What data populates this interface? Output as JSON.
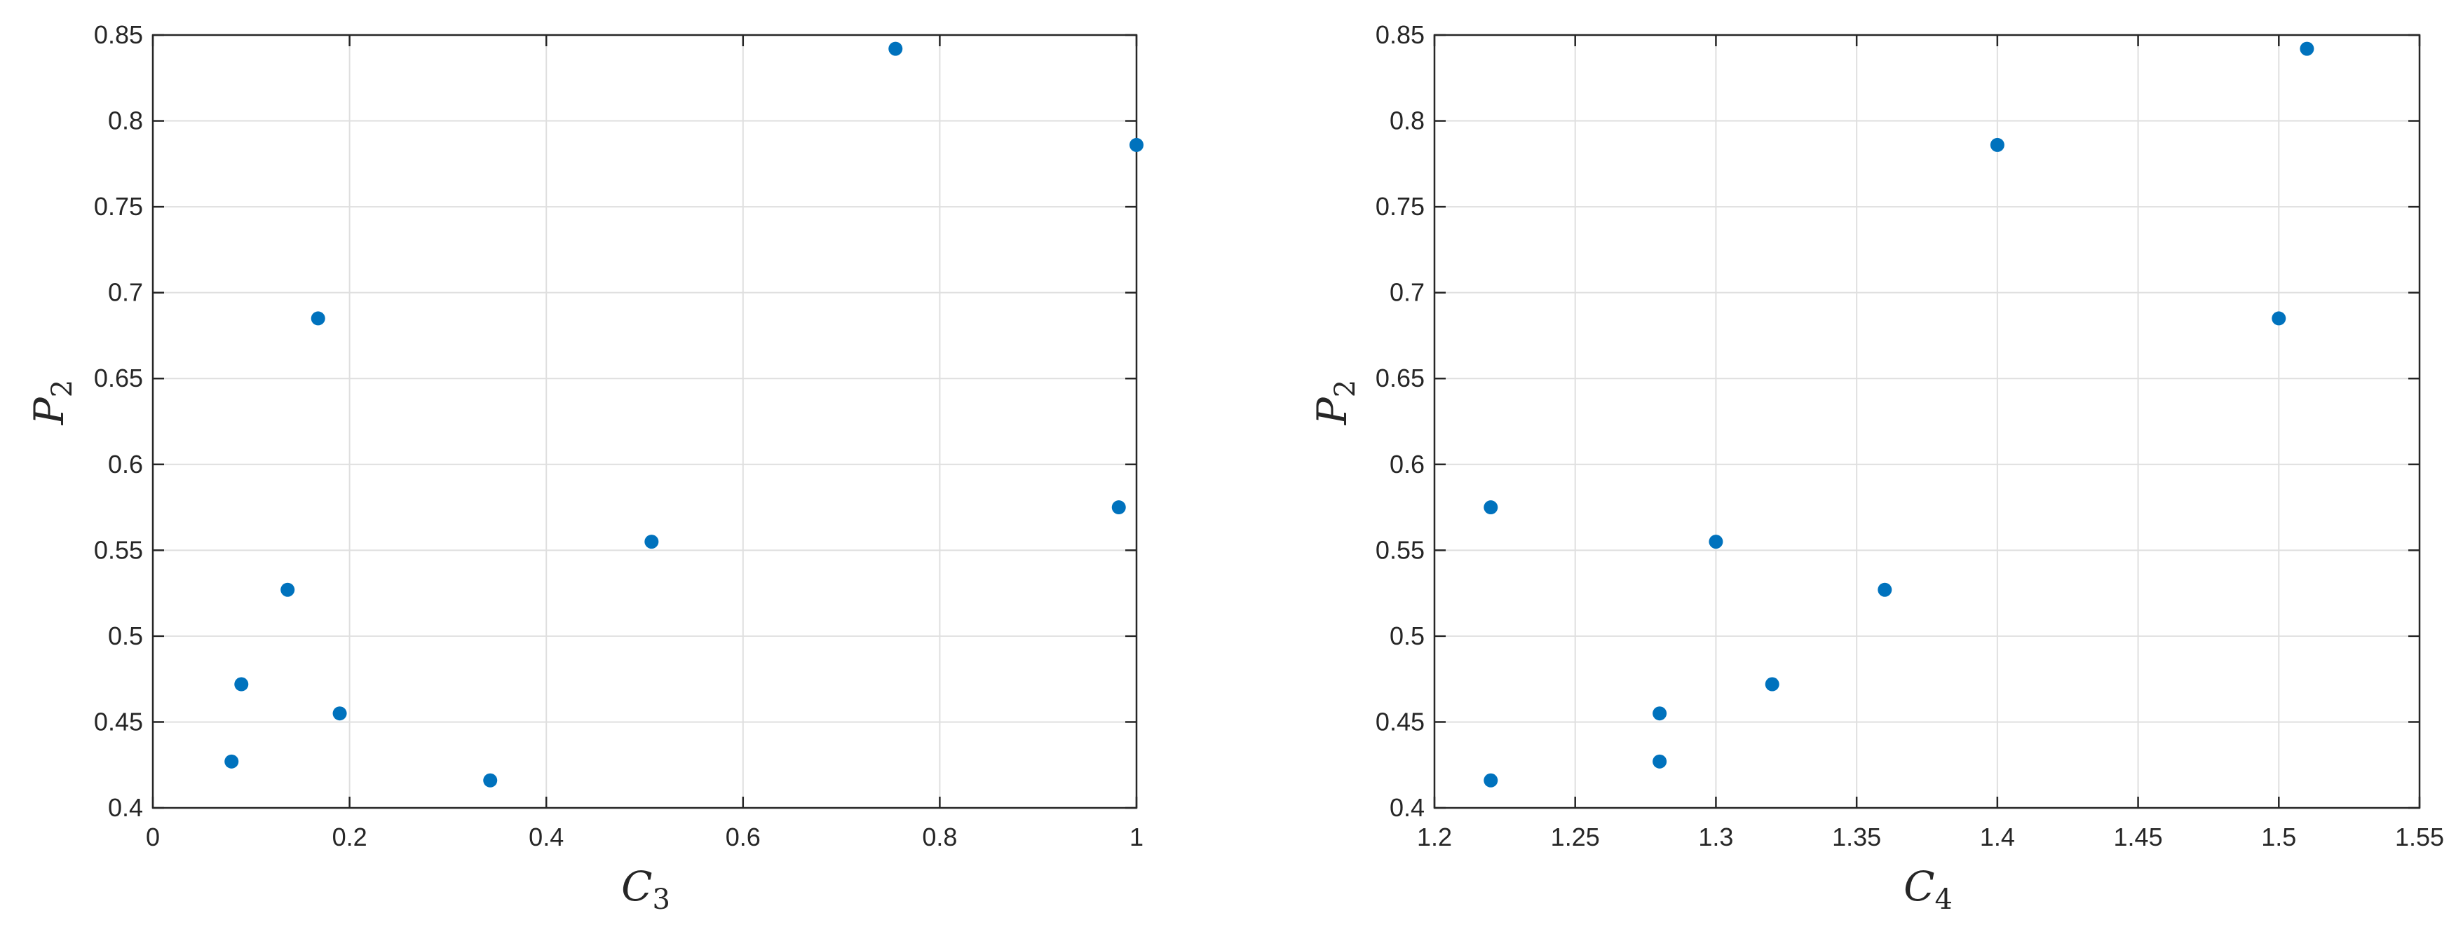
{
  "colors": {
    "marker": "#0072BD",
    "axis": "#262626",
    "grid": "#dfdfdf"
  },
  "chart_data": [
    {
      "type": "scatter",
      "xlabel": "C",
      "xlabel_sub": "3",
      "ylabel": "P",
      "ylabel_sub": "2",
      "xlim": [
        0,
        1
      ],
      "ylim": [
        0.4,
        0.85
      ],
      "xticks": [
        0,
        0.2,
        0.4,
        0.6,
        0.8,
        1
      ],
      "xtick_labels": [
        "0",
        "0.2",
        "0.4",
        "0.6",
        "0.8",
        "1"
      ],
      "yticks": [
        0.4,
        0.45,
        0.5,
        0.55,
        0.6,
        0.65,
        0.7,
        0.75,
        0.8,
        0.85
      ],
      "ytick_labels": [
        "0.4",
        "0.45",
        "0.5",
        "0.55",
        "0.6",
        "0.65",
        "0.7",
        "0.75",
        "0.8",
        "0.85"
      ],
      "grid": true,
      "x": [
        0.08,
        0.09,
        0.137,
        0.168,
        0.19,
        0.343,
        0.507,
        0.755,
        0.982,
        1.0
      ],
      "y": [
        0.427,
        0.472,
        0.527,
        0.685,
        0.455,
        0.416,
        0.555,
        0.842,
        0.575,
        0.786
      ]
    },
    {
      "type": "scatter",
      "xlabel": "C",
      "xlabel_sub": "4",
      "ylabel": "P",
      "ylabel_sub": "2",
      "xlim": [
        1.2,
        1.55
      ],
      "ylim": [
        0.4,
        0.85
      ],
      "xticks": [
        1.2,
        1.25,
        1.3,
        1.35,
        1.4,
        1.45,
        1.5,
        1.55
      ],
      "xtick_labels": [
        "1.2",
        "1.25",
        "1.3",
        "1.35",
        "1.4",
        "1.45",
        "1.5",
        "1.55"
      ],
      "yticks": [
        0.4,
        0.45,
        0.5,
        0.55,
        0.6,
        0.65,
        0.7,
        0.75,
        0.8,
        0.85
      ],
      "ytick_labels": [
        "0.4",
        "0.45",
        "0.5",
        "0.55",
        "0.6",
        "0.65",
        "0.7",
        "0.75",
        "0.8",
        "0.85"
      ],
      "grid": true,
      "x": [
        1.22,
        1.22,
        1.28,
        1.28,
        1.3,
        1.32,
        1.36,
        1.4,
        1.5,
        1.51
      ],
      "y": [
        0.416,
        0.575,
        0.455,
        0.427,
        0.555,
        0.472,
        0.527,
        0.786,
        0.685,
        0.842
      ]
    }
  ]
}
